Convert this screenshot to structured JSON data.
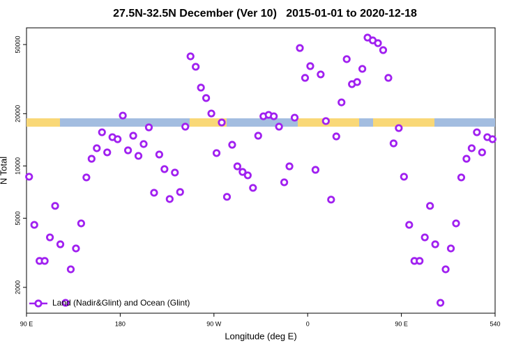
{
  "chart_data": {
    "type": "scatter",
    "title": "27.5N-32.5N December (Ver 10)   2015-01-01 to 2020-12-18",
    "xlabel": "Longitude (deg E)",
    "ylabel": "N Total",
    "log_y": true,
    "legend": "bottom-left",
    "xlim": [
      90,
      540
    ],
    "ylim": [
      1420,
      62400
    ],
    "xticks": [
      {
        "value": 90,
        "label": "90 E"
      },
      180,
      {
        "value": 270,
        "label": "90 W"
      },
      {
        "value": 360,
        "label": "0"
      },
      {
        "value": 450,
        "label": "90 E"
      },
      540
    ],
    "yticks": [
      2000,
      5000,
      10000,
      20000,
      50000
    ],
    "series": [
      {
        "name": "Land (Nadir&Glint) and Ocean (Glint)",
        "color": "#a020f0",
        "x": [
          92.5,
          97.5,
          102.5,
          107.5,
          112.5,
          117.5,
          122.5,
          127.5,
          132.5,
          137.5,
          142.5,
          147.5,
          152.5,
          157.5,
          162.5,
          167.5,
          172.5,
          177.5,
          182.5,
          187.5,
          192.5,
          197.5,
          202.5,
          207.5,
          212.5,
          217.5,
          222.5,
          227.5,
          232.5,
          237.5,
          242.5,
          247.5,
          252.5,
          257.5,
          262.5,
          267.5,
          272.5,
          277.5,
          282.5,
          287.5,
          292.5,
          297.5,
          302.5,
          307.5,
          312.5,
          317.5,
          322.5,
          327.5,
          332.5,
          337.5,
          342.5,
          347.5,
          352.5,
          357.5,
          362.5,
          367.5,
          372.5,
          377.5,
          382.5,
          387.5,
          392.5,
          397.5,
          402.5,
          407.5,
          412.5,
          417.5,
          422.5,
          427.5,
          432.5,
          437.5,
          442.5,
          447.5,
          452.5,
          457.5,
          462.5,
          467.5,
          472.5,
          477.5,
          482.5,
          487.5,
          492.5,
          497.5,
          502.5,
          507.5,
          512.5,
          517.5,
          522.5,
          527.5,
          532.5,
          537.5
        ],
        "values": [
          8670,
          4580,
          2840,
          2840,
          3880,
          5890,
          3540,
          1630,
          2540,
          3350,
          4670,
          8590,
          11000,
          12650,
          15630,
          11970,
          14650,
          14260,
          19500,
          12300,
          14930,
          11430,
          13370,
          16680,
          7010,
          11640,
          9590,
          6450,
          9160,
          7080,
          16830,
          42760,
          37240,
          28250,
          24600,
          20050,
          11860,
          17790,
          6640,
          13240,
          9950,
          9240,
          8830,
          7480,
          14930,
          19320,
          19680,
          19320,
          16830,
          8050,
          9950,
          18970,
          47750,
          32140,
          37570,
          9500,
          33650,
          18130,
          6400,
          14790,
          23230,
          41210,
          29580,
          30410,
          36220,
          54830,
          52840,
          50930,
          46450,
          32140,
          13490,
          16520,
          8670,
          4580,
          2840,
          2840,
          3880,
          5890,
          3540,
          1630,
          2540,
          3350,
          4670,
          8590,
          11000,
          12650,
          15630,
          11970,
          14650,
          14260
        ]
      }
    ]
  }
}
